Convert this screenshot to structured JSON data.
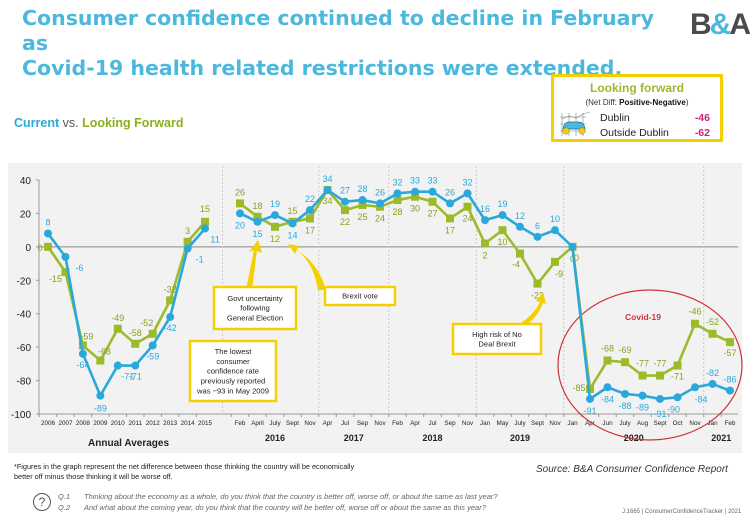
{
  "header": {
    "title_line1": "Consumer confidence continued to decline in February as",
    "title_line2": "Covid-19 health related restrictions were extended.",
    "logo_left": "B",
    "logo_amp": "&",
    "logo_right": "A"
  },
  "subtitle": {
    "current": "Current",
    "vs": " vs. ",
    "looking_forward": "Looking Forward"
  },
  "legend_box": {
    "title": "Looking forward",
    "subtitle_prefix": "(Net Diff: ",
    "subtitle_bold": "Positive-Negative",
    "subtitle_suffix": ")",
    "icon": "car-icon",
    "rows": [
      {
        "label": "Dublin",
        "value": "-46"
      },
      {
        "label": "Outside Dublin",
        "value": "-62"
      }
    ]
  },
  "footer": {
    "footnote": "*Figures in the graph represent the net difference between those thinking the country will be economically better off minus those thinking it will be worse off.",
    "source": "Source:  B&A Consumer Confidence Report",
    "question_icon": "question-circle-icon",
    "questions": [
      {
        "num": "Q.1",
        "text": "Thinking about the economy as a whole, do you think that the country is better off, worse off, or about the same as last year?"
      },
      {
        "num": "Q.2",
        "text": "And what about the coming year, do you think that the country will be better off, worse off or about the same as this year?"
      }
    ],
    "job_ref": "J.1665 | ConsumerConfidenceTracker | 2021"
  },
  "colors": {
    "current": "#2aa8dc",
    "looking_forward": "#9bbb2a",
    "callout_border": "#f5d000",
    "covid_circle": "#d0303a",
    "title": "#4cb8dd"
  },
  "chart_data": {
    "type": "line",
    "title": "Current vs. Looking Forward",
    "ylabel": "",
    "ylim": [
      -100,
      40
    ],
    "yticks": [
      40,
      20,
      0,
      -20,
      -40,
      -60,
      -80,
      -100
    ],
    "grid": false,
    "annual_group_label": "Annual Averages",
    "annual_categories": [
      "2006",
      "2007",
      "2008",
      "2009",
      "2010",
      "2011",
      "2012",
      "2013",
      "2014",
      "2015"
    ],
    "monthly_categories": [
      "Feb",
      "April",
      "July",
      "Sept",
      "Nov",
      "Apr",
      "Jul",
      "Sep",
      "Nov",
      "Feb",
      "Apr",
      "Jul",
      "Sep",
      "Nov",
      "Jan",
      "May",
      "July",
      "Sept",
      "Nov",
      "Jan",
      "Apr",
      "Jun",
      "July",
      "Aug",
      "Sept",
      "Oct",
      "Nov",
      "Jan",
      "Feb"
    ],
    "year_groups": [
      {
        "label": "2016",
        "start": 0,
        "end": 4
      },
      {
        "label": "2017",
        "start": 5,
        "end": 8
      },
      {
        "label": "2018",
        "start": 9,
        "end": 13
      },
      {
        "label": "2019",
        "start": 14,
        "end": 18
      },
      {
        "label": "2020",
        "start": 19,
        "end": 26
      },
      {
        "label": "2021",
        "start": 27,
        "end": 28
      }
    ],
    "series": [
      {
        "name": "Current",
        "annual": [
          8,
          -6,
          -64,
          -89,
          -71,
          -71,
          -59,
          -42,
          -1,
          11
        ],
        "monthly": [
          20,
          15,
          19,
          14,
          22,
          34,
          27,
          28,
          26,
          32,
          33,
          33,
          26,
          32,
          16,
          19,
          12,
          6,
          10,
          0,
          -91,
          -84,
          -88,
          -89,
          -91,
          -90,
          -84,
          -82,
          -86
        ]
      },
      {
        "name": "Looking Forward",
        "annual": [
          0,
          -15,
          -59,
          -68,
          -49,
          -58,
          -52,
          -32,
          3,
          15
        ],
        "monthly": [
          26,
          18,
          12,
          15,
          17,
          34,
          22,
          25,
          24,
          28,
          30,
          27,
          17,
          24,
          2,
          10,
          -4,
          -22,
          -9,
          0,
          -85,
          -68,
          -69,
          -77,
          -77,
          -71,
          -46,
          -52,
          -57
        ]
      }
    ],
    "annotations": [
      {
        "id": "govt",
        "text": [
          "Govt uncertainty",
          "following",
          "General Election"
        ],
        "points_to": "monthly:1"
      },
      {
        "id": "brexit",
        "text": [
          "Brexit vote"
        ],
        "points_to": "monthly:3"
      },
      {
        "id": "lowest",
        "text": [
          "The lowest",
          "consumer",
          "confidence rate",
          "previously reported",
          "was −93 in May 2009"
        ]
      },
      {
        "id": "nodeal",
        "text": [
          "High risk of No",
          "Deal Brexit"
        ],
        "points_to": "monthly:17"
      },
      {
        "id": "covid",
        "text": [
          "Covid-19"
        ]
      }
    ]
  }
}
